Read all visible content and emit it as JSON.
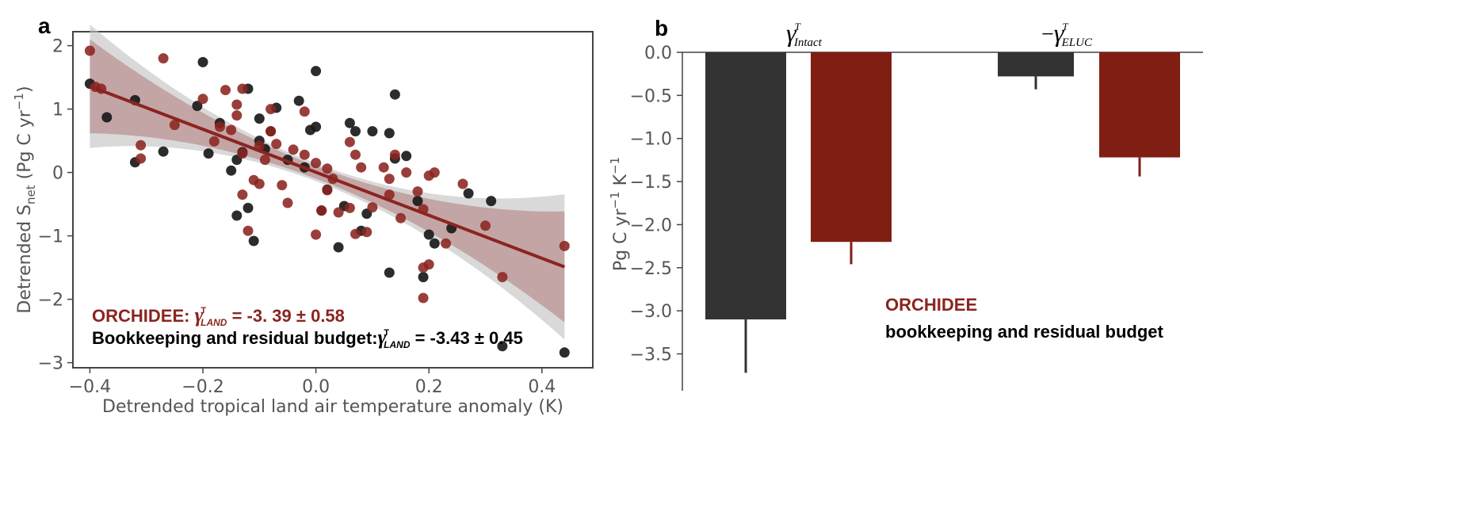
{
  "colors": {
    "orchidee": "#8b2420",
    "bookkeeping": "#1a1a1a",
    "bar_dark": "#333333",
    "bar_red": "#801e14",
    "band_grey": "#bfbfbf",
    "band_red": "#b07a7a"
  },
  "chart_data": [
    {
      "panel_label": "a",
      "type": "scatter",
      "xlabel": "Detrended tropical land air temperature anomaly (K)",
      "ylabel": "Detrended S",
      "ylabel_sub": "net",
      "ylabel_units": " (Pg C yr",
      "ylabel_exp": "−1",
      "ylabel_close": ")",
      "xlim": [
        -0.43,
        0.49
      ],
      "ylim": [
        -3.08,
        2.22
      ],
      "xticks": [
        -0.4,
        -0.2,
        0.0,
        0.2,
        0.4
      ],
      "xtick_labels": [
        "−0.4",
        "−0.2",
        "0.0",
        "0.2",
        "0.4"
      ],
      "yticks": [
        2,
        1,
        0,
        -1,
        -2,
        -3
      ],
      "ytick_labels": [
        "2",
        "1",
        "0",
        "−1",
        "−2",
        "−3"
      ],
      "grid": false,
      "series": [
        {
          "name": "ORCHIDEE",
          "points": [
            [
              -0.4,
              1.92
            ],
            [
              -0.39,
              1.35
            ],
            [
              -0.38,
              1.32
            ],
            [
              -0.31,
              0.43
            ],
            [
              -0.31,
              0.22
            ],
            [
              -0.27,
              1.8
            ],
            [
              -0.25,
              0.75
            ],
            [
              -0.2,
              1.16
            ],
            [
              -0.18,
              0.49
            ],
            [
              -0.17,
              0.72
            ],
            [
              -0.16,
              1.3
            ],
            [
              -0.15,
              0.67
            ],
            [
              -0.14,
              1.07
            ],
            [
              -0.14,
              0.9
            ],
            [
              -0.13,
              0.3
            ],
            [
              -0.13,
              -0.35
            ],
            [
              -0.13,
              1.32
            ],
            [
              -0.12,
              -0.92
            ],
            [
              -0.11,
              -0.12
            ],
            [
              -0.1,
              0.42
            ],
            [
              -0.1,
              -0.18
            ],
            [
              -0.09,
              0.2
            ],
            [
              -0.08,
              1
            ],
            [
              -0.08,
              0.65
            ],
            [
              -0.07,
              0.45
            ],
            [
              -0.06,
              -0.2
            ],
            [
              -0.05,
              -0.48
            ],
            [
              -0.04,
              0.36
            ],
            [
              -0.02,
              0.96
            ],
            [
              -0.02,
              0.28
            ],
            [
              0,
              0.15
            ],
            [
              0,
              -0.98
            ],
            [
              0.01,
              -0.6
            ],
            [
              0.02,
              0.06
            ],
            [
              0.02,
              -0.28
            ],
            [
              0.03,
              -0.1
            ],
            [
              0.04,
              -0.63
            ],
            [
              0.06,
              -0.56
            ],
            [
              0.06,
              0.48
            ],
            [
              0.07,
              0.28
            ],
            [
              0.07,
              -0.97
            ],
            [
              0.08,
              0.08
            ],
            [
              0.09,
              -0.94
            ],
            [
              0.1,
              -0.55
            ],
            [
              0.12,
              0.08
            ],
            [
              0.13,
              -0.1
            ],
            [
              0.13,
              -0.35
            ],
            [
              0.14,
              0.28
            ],
            [
              0.15,
              -0.72
            ],
            [
              0.16,
              0
            ],
            [
              0.18,
              -0.3
            ],
            [
              0.19,
              -0.58
            ],
            [
              0.19,
              -1.5
            ],
            [
              0.2,
              -1.45
            ],
            [
              0.2,
              -0.05
            ],
            [
              0.21,
              0
            ],
            [
              0.19,
              -1.98
            ],
            [
              0.23,
              -1.12
            ],
            [
              0.26,
              -0.18
            ],
            [
              0.3,
              -0.84
            ],
            [
              0.33,
              -1.65
            ],
            [
              0.44,
              -1.16
            ]
          ]
        },
        {
          "name": "Bookkeeping and residual budget",
          "points": [
            [
              -0.4,
              1.4
            ],
            [
              -0.37,
              0.87
            ],
            [
              -0.32,
              1.14
            ],
            [
              -0.32,
              0.16
            ],
            [
              -0.27,
              0.33
            ],
            [
              -0.21,
              1.05
            ],
            [
              -0.2,
              1.74
            ],
            [
              -0.19,
              0.3
            ],
            [
              -0.17,
              0.78
            ],
            [
              -0.15,
              0.03
            ],
            [
              -0.14,
              0.2
            ],
            [
              -0.14,
              -0.68
            ],
            [
              -0.13,
              0.32
            ],
            [
              -0.12,
              1.32
            ],
            [
              -0.12,
              -0.56
            ],
            [
              -0.11,
              -1.08
            ],
            [
              -0.1,
              0.5
            ],
            [
              -0.1,
              0.85
            ],
            [
              -0.09,
              0.37
            ],
            [
              -0.08,
              0.65
            ],
            [
              -0.07,
              1.02
            ],
            [
              -0.05,
              0.2
            ],
            [
              -0.03,
              1.13
            ],
            [
              -0.02,
              0.08
            ],
            [
              -0.01,
              0.67
            ],
            [
              0,
              1.6
            ],
            [
              0,
              0.72
            ],
            [
              0.01,
              -0.6
            ],
            [
              0.02,
              -0.27
            ],
            [
              0.04,
              -1.18
            ],
            [
              0.05,
              -0.53
            ],
            [
              0.06,
              0.78
            ],
            [
              0.07,
              0.65
            ],
            [
              0.08,
              -0.92
            ],
            [
              0.09,
              -0.65
            ],
            [
              0.1,
              0.65
            ],
            [
              0.13,
              0.62
            ],
            [
              0.13,
              -1.58
            ],
            [
              0.14,
              1.23
            ],
            [
              0.14,
              0.22
            ],
            [
              0.16,
              0.26
            ],
            [
              0.18,
              -0.45
            ],
            [
              0.19,
              -1.65
            ],
            [
              0.2,
              -0.98
            ],
            [
              0.21,
              -1.12
            ],
            [
              0.24,
              -0.88
            ],
            [
              0.27,
              -0.33
            ],
            [
              0.31,
              -0.45
            ],
            [
              0.33,
              -2.74
            ],
            [
              0.44,
              -2.84
            ]
          ]
        }
      ],
      "regression": {
        "x": [
          -0.4,
          0.44
        ],
        "y": [
          1.36,
          -1.49
        ]
      },
      "annotations": {
        "orchidee_label": "ORCHIDEE: ",
        "orchidee_symbol": "γ",
        "orchidee_sup": "T",
        "orchidee_sub": "LAND",
        "orchidee_value": " = -3. 39 ± 0.58",
        "bk_label": "Bookkeeping and residual budget:",
        "bk_symbol": "γ",
        "bk_sup": "T",
        "bk_sub": "LAND",
        "bk_value": " = -3.43 ± 0.45"
      }
    },
    {
      "panel_label": "b",
      "type": "bar",
      "ylabel": "Pg C yr",
      "ylabel_exp1": "−1",
      "ylabel_mid": " K",
      "ylabel_exp2": "−1",
      "ylim": [
        -3.9,
        0.05
      ],
      "yticks": [
        0.0,
        -0.5,
        -1.0,
        -1.5,
        -2.0,
        -2.5,
        -3.0,
        -3.5
      ],
      "ytick_labels": [
        "0.0",
        "−0.5",
        "−1.0",
        "−1.5",
        "−2.0",
        "−2.5",
        "−3.0",
        "−3.5"
      ],
      "groups": [
        {
          "prefix": "",
          "symbol": "γ",
          "sup": "T",
          "sub": "Intact"
        },
        {
          "prefix": "−",
          "symbol": "γ",
          "sup": "T",
          "sub": "ELUC"
        }
      ],
      "series": [
        {
          "name": "bookkeeping and residual budget",
          "values": [
            -3.1,
            -0.28
          ],
          "errors": [
            0.62,
            0.15
          ]
        },
        {
          "name": "ORCHIDEE",
          "values": [
            -2.2,
            -1.22
          ],
          "errors": [
            0.26,
            0.22
          ]
        }
      ],
      "legend": {
        "orchidee": "ORCHIDEE",
        "bookkeeping": "bookkeeping and residual budget"
      }
    }
  ]
}
